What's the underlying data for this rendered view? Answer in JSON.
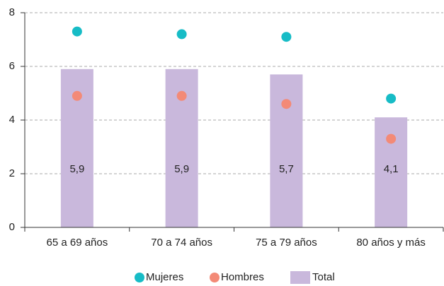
{
  "chart_data": {
    "type": "bar",
    "categories": [
      "65 a 69 años",
      "70 a 74 años",
      "75 a 79 años",
      "80 años y más"
    ],
    "series": [
      {
        "name": "Total",
        "type": "bar",
        "color": "#c9b8dc",
        "values": [
          5.9,
          5.9,
          5.7,
          4.1
        ],
        "value_labels": [
          "5,9",
          "5,9",
          "5,7",
          "4,1"
        ]
      },
      {
        "name": "Mujeres",
        "type": "scatter",
        "color": "#17bcc6",
        "values": [
          7.3,
          7.2,
          7.1,
          4.8
        ]
      },
      {
        "name": "Hombres",
        "type": "scatter",
        "color": "#f38a77",
        "values": [
          4.9,
          4.9,
          4.6,
          3.3
        ]
      }
    ],
    "ylim": [
      0,
      8
    ],
    "yticks": [
      0,
      2,
      4,
      6,
      8
    ],
    "grid": true,
    "legend": "bottom"
  }
}
